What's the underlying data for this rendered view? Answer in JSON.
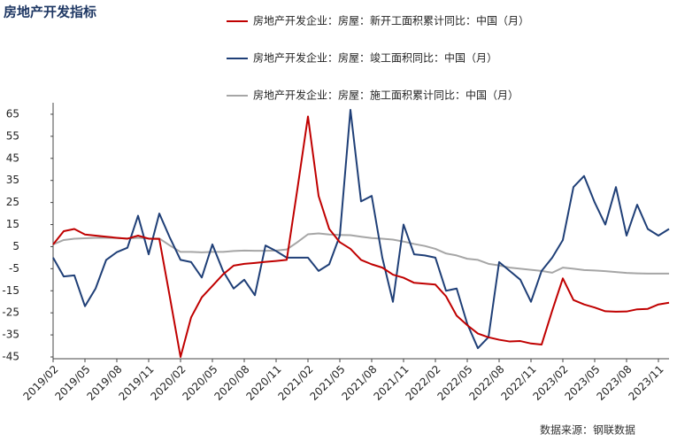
{
  "chart_data": {
    "type": "line",
    "title": "房地产开发指标",
    "source": "数据来源：钢联数据",
    "categories": [
      "2019/02",
      null,
      null,
      "2019/05",
      null,
      null,
      "2019/08",
      null,
      null,
      "2019/11",
      null,
      null,
      "2020/02",
      null,
      null,
      "2020/05",
      null,
      null,
      "2020/08",
      null,
      null,
      "2020/11",
      null,
      null,
      "2021/02",
      null,
      null,
      "2021/05",
      null,
      null,
      "2021/08",
      null,
      null,
      "2021/11",
      null,
      null,
      "2022/02",
      null,
      null,
      "2022/05",
      null,
      null,
      "2022/08",
      null,
      null,
      "2022/11",
      null,
      null,
      "2023/02",
      null,
      null,
      "2023/05",
      null,
      null,
      "2023/08",
      null,
      null,
      "2023/11",
      null
    ],
    "series": [
      {
        "name": "房地产开发企业：房屋：新开工面积累计同比：中国（月）",
        "color": "#c00000",
        "values": [
          6,
          12,
          13,
          10.5,
          10,
          9.5,
          9,
          8.6,
          10,
          8.6,
          8.5,
          -18,
          -45,
          -27,
          -18,
          -12.8,
          -7.6,
          -3.6,
          -2.8,
          -2.4,
          -1.9,
          -1.5,
          -1,
          31,
          64,
          28,
          13,
          7,
          4,
          -1,
          -3,
          -4.5,
          -7.7,
          -9.1,
          -11.4,
          -11.8,
          -12.2,
          -17.5,
          -26.3,
          -30.6,
          -34.4,
          -36.1,
          -37.2,
          -38,
          -37.8,
          -38.9,
          -39.4,
          -24,
          -9.4,
          -19.2,
          -21.2,
          -22.6,
          -24.3,
          -24.5,
          -24.4,
          -23.4,
          -23.2,
          -21.2,
          -20.4
        ]
      },
      {
        "name": "房地产开发企业：房屋：竣工面积同比：中国（月）",
        "color": "#1f3f77",
        "values": [
          0,
          -8.5,
          -8,
          -22,
          -14,
          -1,
          2.5,
          4.5,
          19,
          1.5,
          20,
          9,
          -1,
          -2,
          -9,
          6,
          -6,
          -14,
          -10,
          -17,
          5.5,
          3,
          0,
          0,
          0,
          -6,
          -3,
          10,
          67,
          25.5,
          28,
          0,
          -20,
          15,
          1.5,
          1,
          0,
          -15,
          -14,
          -30,
          -41,
          -36,
          -2,
          -6,
          -10,
          -20,
          -6,
          0,
          8,
          32,
          37,
          25,
          15,
          32,
          10,
          24,
          13,
          10,
          13
        ]
      },
      {
        "name": "房地产开发企业：房屋：施工面积累计同比：中国（月）",
        "color": "#a6a6a6",
        "values": [
          6,
          8,
          8.6,
          8.8,
          9,
          9,
          8.9,
          8.7,
          9,
          8.7,
          8.7,
          5.5,
          2.6,
          2.6,
          2.4,
          2.6,
          2.6,
          3,
          3.2,
          3.1,
          3.1,
          3.2,
          3.7,
          7,
          10.6,
          11,
          10.5,
          10.3,
          10.2,
          9.5,
          8.9,
          8.6,
          8.2,
          7.3,
          6.2,
          5.3,
          4,
          1.9,
          1,
          -0.5,
          -1,
          -2.8,
          -3.5,
          -4.5,
          -5,
          -5.5,
          -6,
          -6.8,
          -4.5,
          -5,
          -5.6,
          -5.8,
          -6.1,
          -6.5,
          -6.9,
          -7.1,
          -7.2,
          -7.2,
          -7.2
        ]
      }
    ],
    "ylim": [
      -45,
      69
    ],
    "yticks": [
      65,
      55,
      45,
      35,
      25,
      15,
      5,
      -5,
      -15,
      -25,
      -35,
      -45
    ]
  }
}
